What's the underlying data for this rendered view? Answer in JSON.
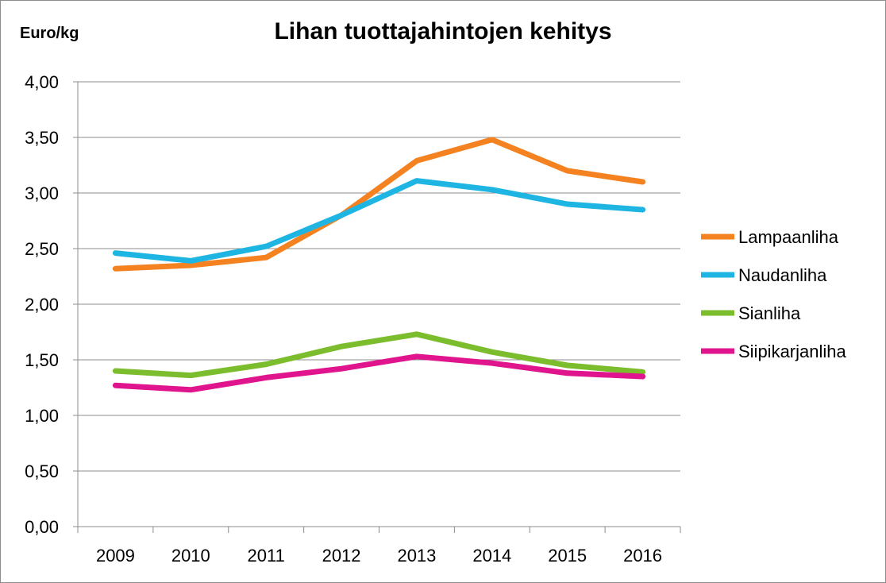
{
  "chart_data": {
    "type": "line",
    "title": "Lihan tuottajahintojen kehitys",
    "ylabel": "Euro/kg",
    "xlabel": "",
    "ylim": [
      0,
      4
    ],
    "y_ticks": [
      "0,00",
      "0,50",
      "1,00",
      "1,50",
      "2,00",
      "2,50",
      "3,00",
      "3,50",
      "4,00"
    ],
    "categories": [
      "2009",
      "2010",
      "2011",
      "2012",
      "2013",
      "2014",
      "2015",
      "2016"
    ],
    "grid": true,
    "legend_position": "right",
    "series": [
      {
        "name": "Lampaanliha",
        "color": "#f58220",
        "values": [
          2.32,
          2.35,
          2.42,
          2.8,
          3.29,
          3.48,
          3.2,
          3.1
        ]
      },
      {
        "name": "Naudanliha",
        "color": "#1fb5e3",
        "values": [
          2.46,
          2.39,
          2.52,
          2.8,
          3.11,
          3.03,
          2.9,
          2.85
        ]
      },
      {
        "name": "Sianliha",
        "color": "#7cbd2e",
        "values": [
          1.4,
          1.36,
          1.46,
          1.62,
          1.73,
          1.57,
          1.45,
          1.39
        ]
      },
      {
        "name": "Siipikarjanliha",
        "color": "#e0148c",
        "values": [
          1.27,
          1.23,
          1.34,
          1.42,
          1.53,
          1.47,
          1.38,
          1.35
        ]
      }
    ]
  }
}
